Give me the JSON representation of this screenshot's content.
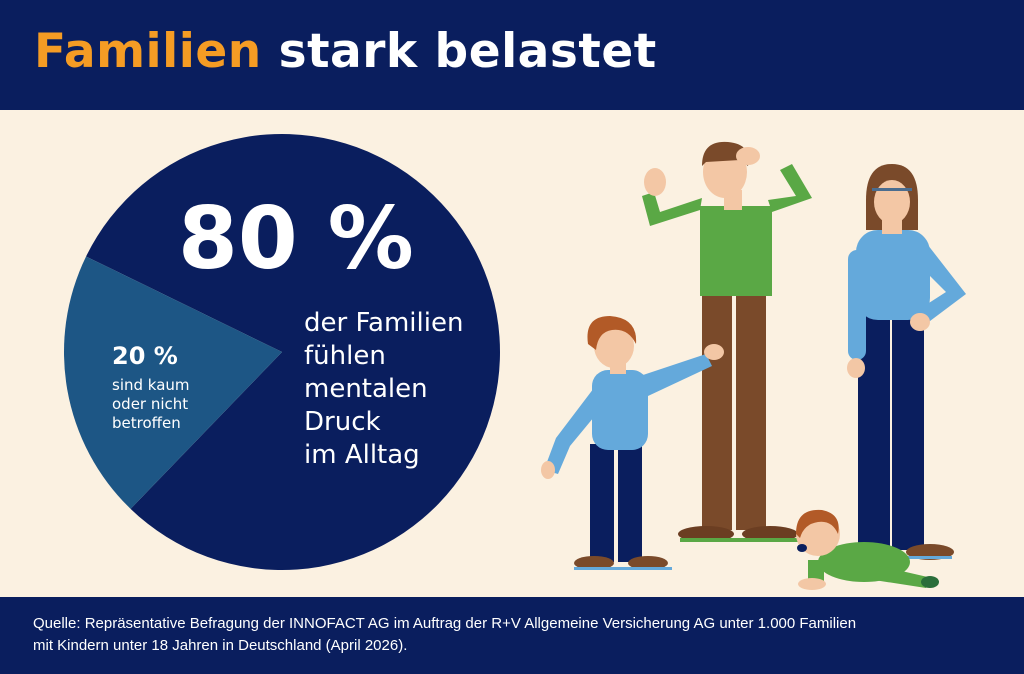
{
  "header": {
    "title_accent": "Familien",
    "title_rest": "stark belastet"
  },
  "chart_data": {
    "type": "pie",
    "slices": [
      {
        "value": 80,
        "label": "80 %",
        "description_lines": [
          "der Familien",
          "fühlen",
          "mentalen",
          "Druck",
          "im Alltag"
        ],
        "color": "#0a1e5e"
      },
      {
        "value": 20,
        "label": "20 %",
        "description_lines": [
          "sind kaum",
          "oder nicht",
          "betroffen"
        ],
        "color": "#1d5685"
      }
    ]
  },
  "footer": {
    "source_line1": "Quelle: Repräsentative Befragung der INNOFACT AG im Auftrag der R+V Allgemeine Versicherung AG unter 1.000 Familien",
    "source_line2": "mit Kindern unter 18 Jahren in Deutschland (April 2026)."
  },
  "illustration": {
    "icon": "stressed-family-illustration",
    "colors": {
      "green": "#5aa845",
      "blue": "#64a9db",
      "navy": "#0a1e5e",
      "brown": "#7a4a2a",
      "skin": "#f3c7a5"
    }
  }
}
